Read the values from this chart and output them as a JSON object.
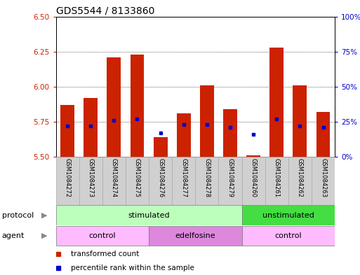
{
  "title": "GDS5544 / 8133860",
  "samples": [
    "GSM1084272",
    "GSM1084273",
    "GSM1084274",
    "GSM1084275",
    "GSM1084276",
    "GSM1084277",
    "GSM1084278",
    "GSM1084279",
    "GSM1084260",
    "GSM1084261",
    "GSM1084262",
    "GSM1084263"
  ],
  "bar_bottom": 5.5,
  "bar_tops": [
    5.87,
    5.92,
    6.21,
    6.23,
    5.64,
    5.81,
    6.01,
    5.84,
    5.51,
    6.28,
    6.01,
    5.82
  ],
  "percentile_values": [
    22,
    22,
    26,
    27,
    17,
    23,
    23,
    21,
    16,
    27,
    22,
    21
  ],
  "ylim": [
    5.5,
    6.5
  ],
  "ylim2": [
    0,
    100
  ],
  "yticks_left": [
    5.5,
    5.75,
    6.0,
    6.25,
    6.5
  ],
  "yticks_right": [
    0,
    25,
    50,
    75,
    100
  ],
  "ytick_labels_right": [
    "0%",
    "25%",
    "50%",
    "75%",
    "100%"
  ],
  "bar_color": "#cc2200",
  "percentile_color": "#0000cc",
  "protocol_groups": [
    {
      "label": "stimulated",
      "start": 0,
      "end": 7,
      "color": "#bbffbb"
    },
    {
      "label": "unstimulated",
      "start": 8,
      "end": 11,
      "color": "#44dd44"
    }
  ],
  "agent_groups": [
    {
      "label": "control",
      "start": 0,
      "end": 3,
      "color": "#ffbbff"
    },
    {
      "label": "edelfosine",
      "start": 4,
      "end": 7,
      "color": "#dd88dd"
    },
    {
      "label": "control",
      "start": 8,
      "end": 11,
      "color": "#ffbbff"
    }
  ],
  "legend_items": [
    {
      "label": "transformed count",
      "color": "#cc2200"
    },
    {
      "label": "percentile rank within the sample",
      "color": "#0000cc"
    }
  ],
  "ylabel_left_color": "#cc2200",
  "ylabel_right_color": "#0000cc",
  "title_fontsize": 10,
  "bar_width": 0.6,
  "sample_bg_color": "#d0d0d0",
  "sample_border_color": "#aaaaaa"
}
